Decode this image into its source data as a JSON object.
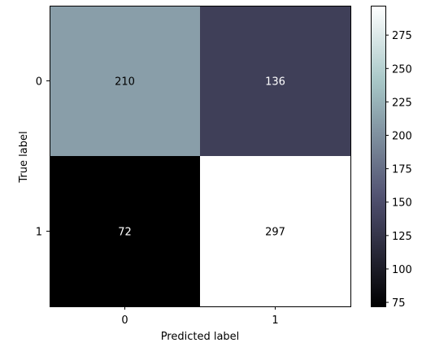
{
  "chart_data": {
    "type": "heatmap",
    "title": "",
    "xlabel": "Predicted label",
    "ylabel": "True label",
    "x_categories": [
      "0",
      "1"
    ],
    "y_categories": [
      "0",
      "1"
    ],
    "values": [
      [
        210,
        136
      ],
      [
        72,
        297
      ]
    ],
    "colormap": "bone",
    "colorbar": {
      "range": [
        72,
        297
      ],
      "ticks": [
        "75",
        "100",
        "125",
        "150",
        "175",
        "200",
        "225",
        "250",
        "275"
      ]
    },
    "grid": false,
    "legend": "colorbar right"
  }
}
